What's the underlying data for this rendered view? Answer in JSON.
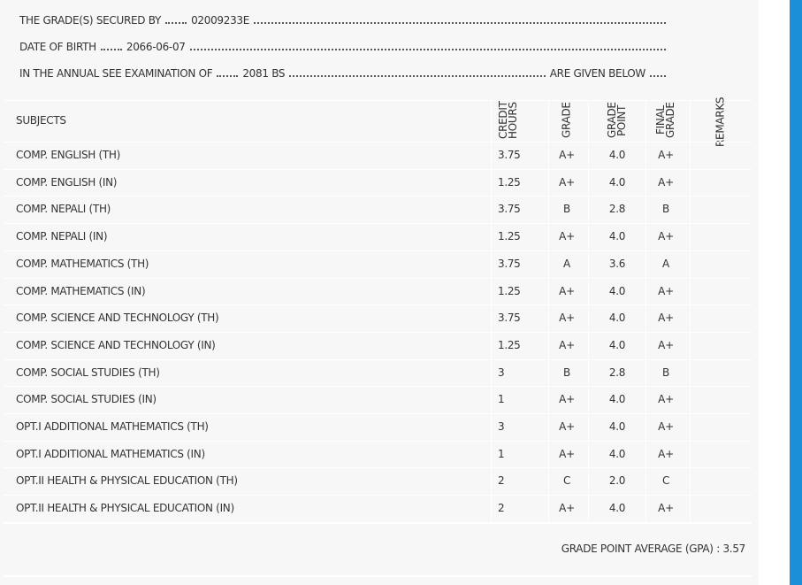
{
  "header": {
    "lines": [
      {
        "label": "THE GRADE(S) SECURED BY",
        "value": "02009233E"
      },
      {
        "label": "DATE OF BIRTH",
        "value": "2066-06-07"
      },
      {
        "label": "IN THE ANNUAL SEE EXAMINATION OF",
        "value": "2081 BS",
        "tail": "ARE GIVEN BELOW"
      }
    ]
  },
  "table": {
    "columns": [
      "SUBJECTS",
      "CREDIT HOURS",
      "GRADE",
      "GRADE POINT",
      "FINAL GRADE",
      "REMARKS"
    ],
    "rows": [
      [
        "COMP. ENGLISH (TH)",
        "3.75",
        "A+",
        "4.0",
        "A+"
      ],
      [
        "COMP. ENGLISH (IN)",
        "1.25",
        "A+",
        "4.0",
        "A+"
      ],
      [
        "COMP. NEPALI (TH)",
        "3.75",
        "B",
        "2.8",
        "B"
      ],
      [
        "COMP. NEPALI (IN)",
        "1.25",
        "A+",
        "4.0",
        "A+"
      ],
      [
        "COMP. MATHEMATICS (TH)",
        "3.75",
        "A",
        "3.6",
        "A"
      ],
      [
        "COMP. MATHEMATICS (IN)",
        "1.25",
        "A+",
        "4.0",
        "A+"
      ],
      [
        "COMP. SCIENCE AND TECHNOLOGY (TH)",
        "3.75",
        "A+",
        "4.0",
        "A+"
      ],
      [
        "COMP. SCIENCE AND TECHNOLOGY (IN)",
        "1.25",
        "A+",
        "4.0",
        "A+"
      ],
      [
        "COMP. SOCIAL STUDIES (TH)",
        "3",
        "B",
        "2.8",
        "B"
      ],
      [
        "COMP. SOCIAL STUDIES (IN)",
        "1",
        "A+",
        "4.0",
        "A+"
      ],
      [
        "OPT.I ADDITIONAL MATHEMATICS (TH)",
        "3",
        "A+",
        "4.0",
        "A+"
      ],
      [
        "OPT.I ADDITIONAL MATHEMATICS (IN)",
        "1",
        "A+",
        "4.0",
        "A+"
      ],
      [
        "OPT.II HEALTH & PHYSICAL EDUCATION (TH)",
        "2",
        "C",
        "2.0",
        "C"
      ],
      [
        "OPT.II HEALTH & PHYSICAL EDUCATION (IN)",
        "2",
        "A+",
        "4.0",
        "A+"
      ]
    ]
  },
  "gpa": {
    "label": "GRADE POINT AVERAGE (GPA) :",
    "value": "3.57"
  }
}
